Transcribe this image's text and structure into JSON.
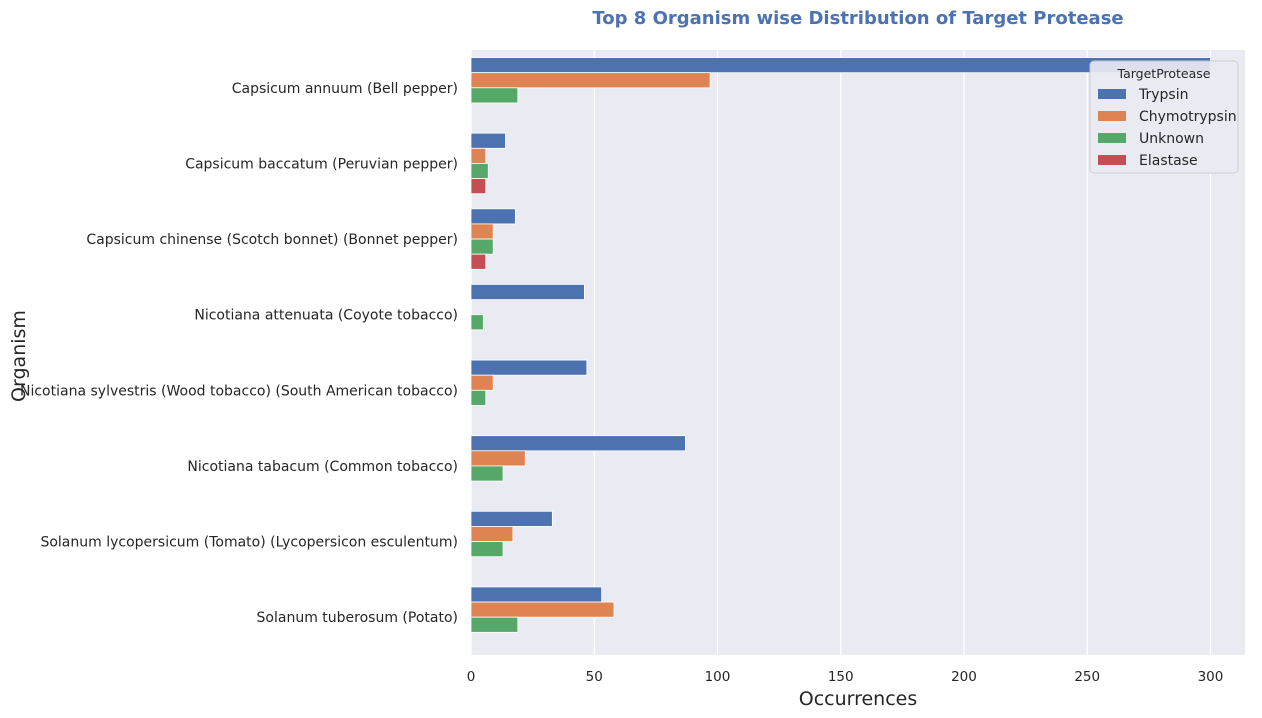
{
  "chart_data": {
    "type": "bar",
    "orientation": "horizontal",
    "title": "Top 8 Organism wise Distribution of Target Protease",
    "xlabel": "Occurrences",
    "ylabel": "Organism",
    "xlim": [
      0,
      314
    ],
    "xticks": [
      0,
      50,
      100,
      150,
      200,
      250,
      300
    ],
    "grid": true,
    "legend": {
      "title": "TargetProtease",
      "position": "top-right"
    },
    "categories": [
      "Capsicum annuum (Bell pepper)",
      "Capsicum baccatum (Peruvian pepper)",
      "Capsicum chinense (Scotch bonnet) (Bonnet pepper)",
      "Nicotiana attenuata (Coyote tobacco)",
      "Nicotiana sylvestris (Wood tobacco) (South American tobacco)",
      "Nicotiana tabacum (Common tobacco)",
      "Solanum lycopersicum (Tomato) (Lycopersicon esculentum)",
      "Solanum tuberosum (Potato)"
    ],
    "series": [
      {
        "name": "Trypsin",
        "color": "#4c72b0",
        "values": [
          300,
          14,
          18,
          46,
          47,
          87,
          33,
          53
        ]
      },
      {
        "name": "Chymotrypsin",
        "color": "#dd8452",
        "values": [
          97,
          6,
          9,
          0,
          9,
          22,
          17,
          58
        ]
      },
      {
        "name": "Unknown",
        "color": "#55a868",
        "values": [
          19,
          7,
          9,
          5,
          6,
          13,
          13,
          19
        ]
      },
      {
        "name": "Elastase",
        "color": "#c44e52",
        "values": [
          0,
          6,
          6,
          0,
          0,
          0,
          0,
          0
        ]
      }
    ]
  }
}
